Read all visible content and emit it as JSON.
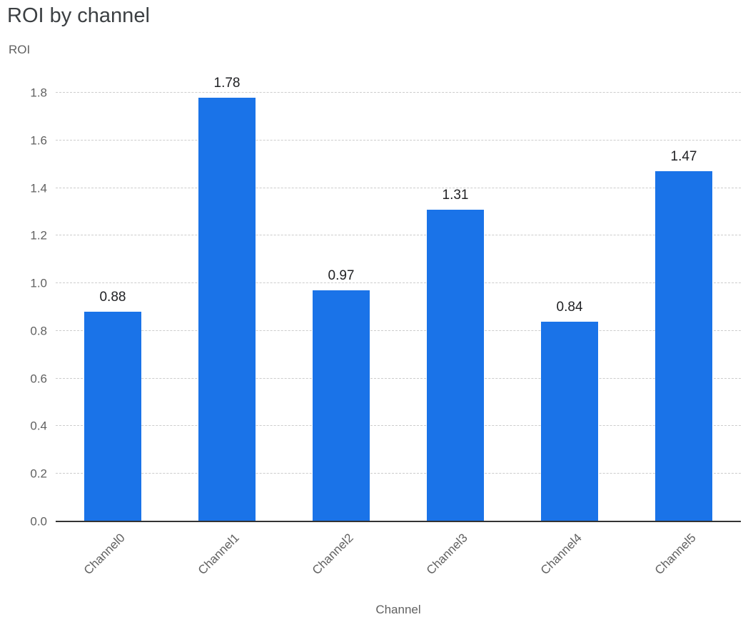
{
  "chart_data": {
    "type": "bar",
    "title": "ROI by channel",
    "ylabel": "ROI",
    "xlabel": "Channel",
    "categories": [
      "Channel0",
      "Channel1",
      "Channel2",
      "Channel3",
      "Channel4",
      "Channel5"
    ],
    "values": [
      0.88,
      1.78,
      0.97,
      1.31,
      0.84,
      1.47
    ],
    "value_labels": [
      "0.88",
      "1.78",
      "0.97",
      "1.31",
      "0.84",
      "1.47"
    ],
    "ylim": [
      0,
      1.8
    ],
    "yticks": [
      "0.0",
      "0.2",
      "0.4",
      "0.6",
      "0.8",
      "1.0",
      "1.2",
      "1.4",
      "1.6",
      "1.8"
    ],
    "grid": "horizontal-dashed",
    "legend": "none",
    "bar_color": "#1a73e8",
    "colors": {
      "title": "#3c4043",
      "axis_text": "#616161",
      "value_label": "#202124",
      "gridline": "#cccccc",
      "axis_line": "#333333",
      "background": "#ffffff"
    }
  }
}
